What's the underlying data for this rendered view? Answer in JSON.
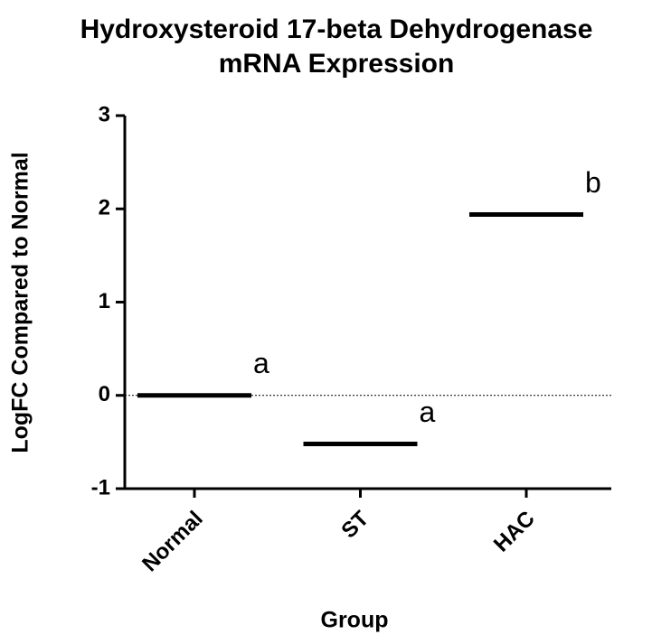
{
  "chart_data": {
    "type": "mean-line",
    "title": [
      "Hydroxysteroid 17-beta Dehydrogenase",
      "mRNA Expression"
    ],
    "x_label": "Group",
    "y_label": "LogFC Compared to Normal",
    "categories": [
      "Normal",
      "ST",
      "HAC"
    ],
    "values": [
      0,
      -0.52,
      1.94
    ],
    "annotations": [
      "a",
      "a",
      "b"
    ],
    "color": "#000000",
    "ylim": [
      -1,
      3
    ],
    "yticks": [
      -1,
      0,
      1,
      2,
      3
    ]
  }
}
